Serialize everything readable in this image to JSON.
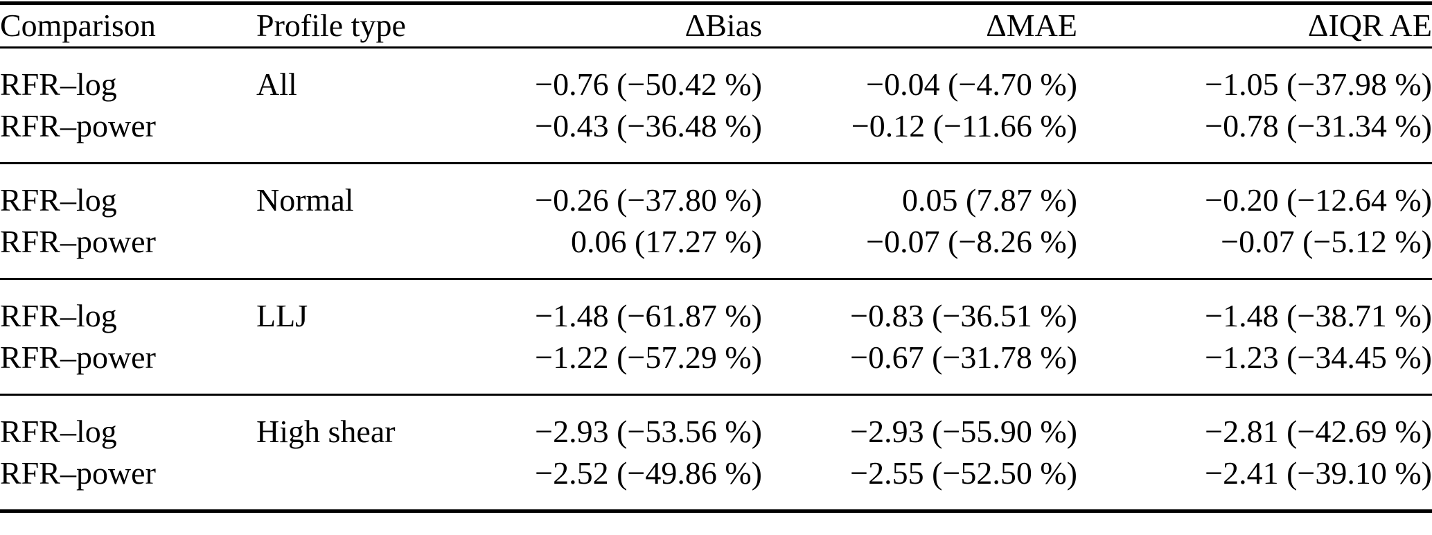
{
  "table": {
    "columns": [
      "Comparison",
      "Profile type",
      "ΔBias",
      "ΔMAE",
      "ΔIQR AE"
    ],
    "sections": [
      {
        "profile_type": "All",
        "rows": [
          {
            "comparison": "RFR–log",
            "delta_bias": "−0.76 (−50.42 %)",
            "delta_mae": "−0.04 (−4.70 %)",
            "delta_iqr_ae": "−1.05 (−37.98 %)"
          },
          {
            "comparison": "RFR–power",
            "delta_bias": "−0.43 (−36.48 %)",
            "delta_mae": "−0.12 (−11.66 %)",
            "delta_iqr_ae": "−0.78 (−31.34 %)"
          }
        ]
      },
      {
        "profile_type": "Normal",
        "rows": [
          {
            "comparison": "RFR–log",
            "delta_bias": "−0.26 (−37.80 %)",
            "delta_mae": "0.05 (7.87 %)",
            "delta_iqr_ae": "−0.20 (−12.64 %)"
          },
          {
            "comparison": "RFR–power",
            "delta_bias": "0.06 (17.27 %)",
            "delta_mae": "−0.07 (−8.26 %)",
            "delta_iqr_ae": "−0.07 (−5.12 %)"
          }
        ]
      },
      {
        "profile_type": "LLJ",
        "rows": [
          {
            "comparison": "RFR–log",
            "delta_bias": "−1.48 (−61.87 %)",
            "delta_mae": "−0.83 (−36.51 %)",
            "delta_iqr_ae": "−1.48 (−38.71 %)"
          },
          {
            "comparison": "RFR–power",
            "delta_bias": "−1.22 (−57.29 %)",
            "delta_mae": "−0.67 (−31.78 %)",
            "delta_iqr_ae": "−1.23 (−34.45 %)"
          }
        ]
      },
      {
        "profile_type": "High shear",
        "rows": [
          {
            "comparison": "RFR–log",
            "delta_bias": "−2.93 (−53.56 %)",
            "delta_mae": "−2.93 (−55.90 %)",
            "delta_iqr_ae": "−2.81 (−42.69 %)"
          },
          {
            "comparison": "RFR–power",
            "delta_bias": "−2.52 (−49.86 %)",
            "delta_mae": "−2.55 (−52.50 %)",
            "delta_iqr_ae": "−2.41 (−39.10 %)"
          }
        ]
      }
    ],
    "colors": {
      "background": "#ffffff",
      "text": "#000000",
      "rule": "#000000"
    }
  }
}
